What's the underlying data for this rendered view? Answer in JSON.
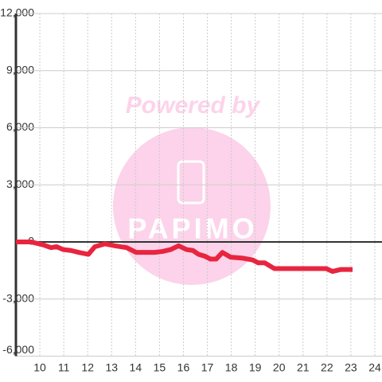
{
  "chart_data": {
    "type": "line",
    "annotations": [
      "Powered by",
      "PAPIMO"
    ],
    "x": [
      9.0,
      9.63,
      10.13,
      10.47,
      10.7,
      10.97,
      11.3,
      11.63,
      12.03,
      12.3,
      12.73,
      13.13,
      13.63,
      14.03,
      14.8,
      15.13,
      15.47,
      15.8,
      16.13,
      16.4,
      16.63,
      16.9,
      17.13,
      17.37,
      17.63,
      17.97,
      18.47,
      18.9,
      19.13,
      19.4,
      19.8,
      20.3,
      21.97,
      22.23,
      22.57,
      23.07
    ],
    "series": [
      {
        "color": "#e8253f",
        "values": [
          0,
          0,
          -150,
          -300,
          -250,
          -400,
          -450,
          -550,
          -650,
          -250,
          -100,
          -200,
          -300,
          -550,
          -550,
          -500,
          -400,
          -200,
          -400,
          -450,
          -650,
          -750,
          -900,
          -900,
          -550,
          -800,
          -850,
          -950,
          -1100,
          -1100,
          -1400,
          -1400,
          -1400,
          -1550,
          -1450,
          -1450
        ]
      }
    ],
    "xlim": [
      9,
      24.3
    ],
    "xticks": [
      10,
      11,
      12,
      13,
      14,
      15,
      16,
      17,
      18,
      19,
      20,
      21,
      22,
      23,
      24
    ],
    "ylim": [
      -6000,
      12000
    ],
    "yticks": [
      {
        "value": -6000,
        "label": "-6,000"
      },
      {
        "value": -3000,
        "label": "-3,000"
      },
      0,
      {
        "value": 3000,
        "label": "3,000"
      },
      {
        "value": 6000,
        "label": "6,000"
      },
      {
        "value": 9000,
        "label": "9,000"
      },
      {
        "value": 12000,
        "label": "12,000"
      }
    ],
    "grid": true
  }
}
